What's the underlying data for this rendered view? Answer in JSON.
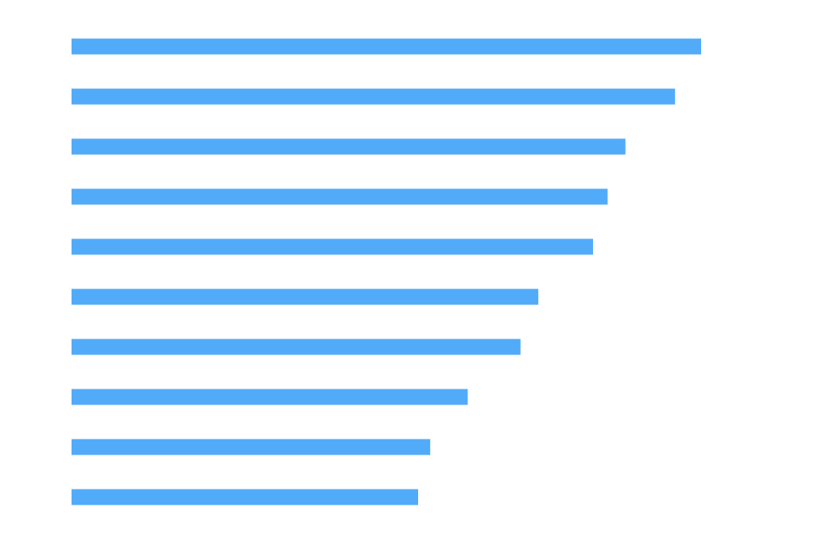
{
  "chart_data": {
    "type": "bar",
    "orientation": "horizontal",
    "values": [
      99,
      94.9,
      87.1,
      84.3,
      82,
      73.4,
      70.6,
      62.3,
      56.4,
      54.5
    ],
    "color": "#52abf9",
    "xlim": [
      0,
      100
    ]
  }
}
